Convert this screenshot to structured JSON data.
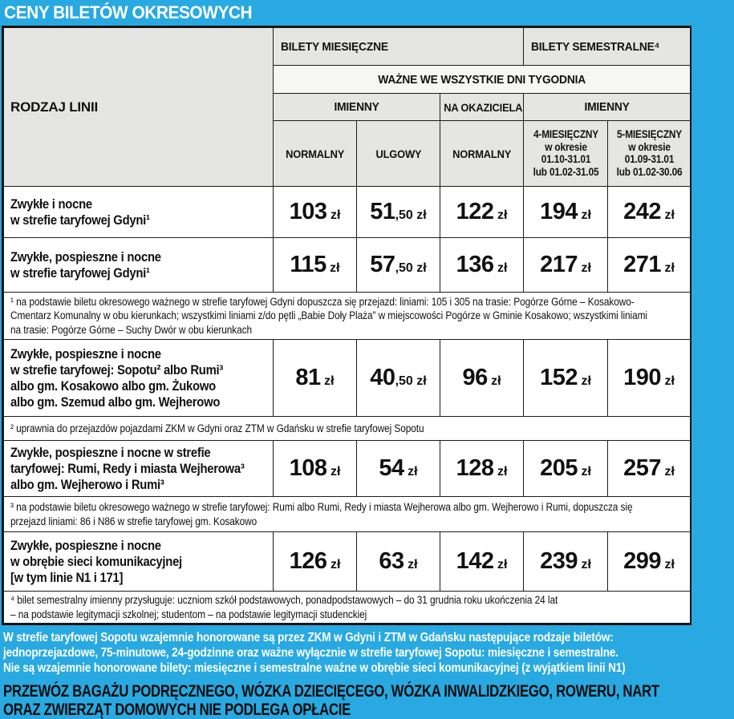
{
  "colors": {
    "accent_blue": "#29a9e1",
    "header_grey": "#e5e5e4",
    "subheader_white": "#f6f6f5",
    "border": "#1c1c1c"
  },
  "page": {
    "title": "CENY BILETÓW OKRESOWYCH"
  },
  "table": {
    "row_type_header": "RODZAJ LINII",
    "group_monthly": "BILETY MIESIĘCZNE",
    "group_semester": "BILETY SEMESTRALNE⁴",
    "valid_all_days": "WAŻNE WE WSZYSTKIE DNI TYGODNIA",
    "sub_named_monthly": "IMIENNY",
    "sub_bearer": "NA OKAZICIELA",
    "sub_named_semester": "IMIENNY",
    "col_normal": "NORMALNY",
    "col_reduced": "ULGOWY",
    "col_bearer_normal": "NORMALNY",
    "col_4month": "4-MIESIĘCZNY\nw okresie\n01.10-31.01\nlub 01.02-31.05",
    "col_5month": "5-MIESIĘCZNY\nw okresie\n01.09-31.01\nlub 01.02-30.06",
    "rows": [
      {
        "label": "Zwykłe i nocne\nw strefie taryfowej Gdyni¹",
        "prices": [
          {
            "big": "103",
            "small": " zł"
          },
          {
            "big": "51",
            "small": ",50 zł"
          },
          {
            "big": "122",
            "small": " zł"
          },
          {
            "big": "194",
            "small": " zł"
          },
          {
            "big": "242",
            "small": " zł"
          }
        ]
      },
      {
        "label": "Zwykłe, pospieszne i nocne\nw strefie taryfowej Gdyni¹",
        "prices": [
          {
            "big": "115",
            "small": " zł"
          },
          {
            "big": "57",
            "small": ",50 zł"
          },
          {
            "big": "136",
            "small": " zł"
          },
          {
            "big": "217",
            "small": " zł"
          },
          {
            "big": "271",
            "small": " zł"
          }
        ]
      },
      {
        "label": "Zwykłe, pospieszne i nocne\nw strefie taryfowej: Sopotu² albo Rumi³\nalbo gm. Kosakowo albo gm. Żukowo\nalbo gm. Szemud albo gm. Wejherowo",
        "prices": [
          {
            "big": "81",
            "small": " zł"
          },
          {
            "big": "40",
            "small": ",50 zł"
          },
          {
            "big": "96",
            "small": " zł"
          },
          {
            "big": "152",
            "small": " zł"
          },
          {
            "big": "190",
            "small": " zł"
          }
        ]
      },
      {
        "label": "Zwykłe, pospieszne i nocne w strefie\ntaryfowej: Rumi, Redy i miasta Wejherowa³\nalbo gm. Wejherowo i Rumi³",
        "prices": [
          {
            "big": "108",
            "small": " zł"
          },
          {
            "big": "54",
            "small": " zł"
          },
          {
            "big": "128",
            "small": " zł"
          },
          {
            "big": "205",
            "small": " zł"
          },
          {
            "big": "257",
            "small": " zł"
          }
        ]
      },
      {
        "label": "Zwykłe, pospieszne i nocne\nw obrębie sieci komunikacyjnej\n[w tym linie N1 i 171]",
        "prices": [
          {
            "big": "126",
            "small": " zł"
          },
          {
            "big": "63",
            "small": " zł"
          },
          {
            "big": "142",
            "small": " zł"
          },
          {
            "big": "239",
            "small": " zł"
          },
          {
            "big": "299",
            "small": " zł"
          }
        ]
      }
    ],
    "footnotes": [
      "¹ na podstawie biletu okresowego ważnego w strefie taryfowej Gdyni dopuszcza się przejazd: liniami: 105 i 305 na trasie: Pogórze Górne – Kosakowo-\nCmentarz Komunalny w obu kierunkach; wszystkimi liniami z/do pętli „Babie Doły Plaża” w miejscowości Pogórze w Gminie Kosakowo; wszystkimi liniami\nna trasie: Pogórze Górne – Suchy Dwór w obu kierunkach",
      "² uprawnia do przejazdów pojazdami ZKM w Gdyni oraz ZTM w Gdańsku w strefie taryfowej Sopotu",
      "³ na podstawie biletu okresowego ważnego w strefie taryfowej: Rumi albo Rumi, Redy i miasta Wejherowa albo gm. Wejherowo i Rumi, dopuszcza się\nprzejazd liniami: 86 i N86 w strefie taryfowej gm. Kosakowo",
      "⁴ bilet semestralny imienny przysługuje: uczniom szkół podstawowych, ponadpodstawowych – do 31 grudnia roku ukończenia 24 lat\n– na podstawie legitymacji szkolnej; studentom – na podstawie legitymacji studenckiej"
    ]
  },
  "bottom": {
    "notice": "W strefie taryfowej Sopotu wzajemnie honorowane są przez ZKM w Gdyni i ZTM w Gdańsku następujące rodzaje biletów:\njednoprzejazdowe, 75-minutowe, 24-godzinne oraz ważne wyłącznie w strefie taryfowej Sopotu: miesięczne i semestralne.\nNie są wzajemnie honorowane bilety: miesięczne i semestralne ważne w obrębie sieci komunikacyjnej (z wyjątkiem linii N1)",
    "baggage": "PRZEWÓZ BAGAŻU PODRĘCZNEGO, WÓZKA DZIECIĘCEGO, WÓZKA INWALIDZKIEGO, ROWERU, NART\nORAZ ZWIERZĄT DOMOWYCH NIE PODLEGA OPŁACIE"
  }
}
